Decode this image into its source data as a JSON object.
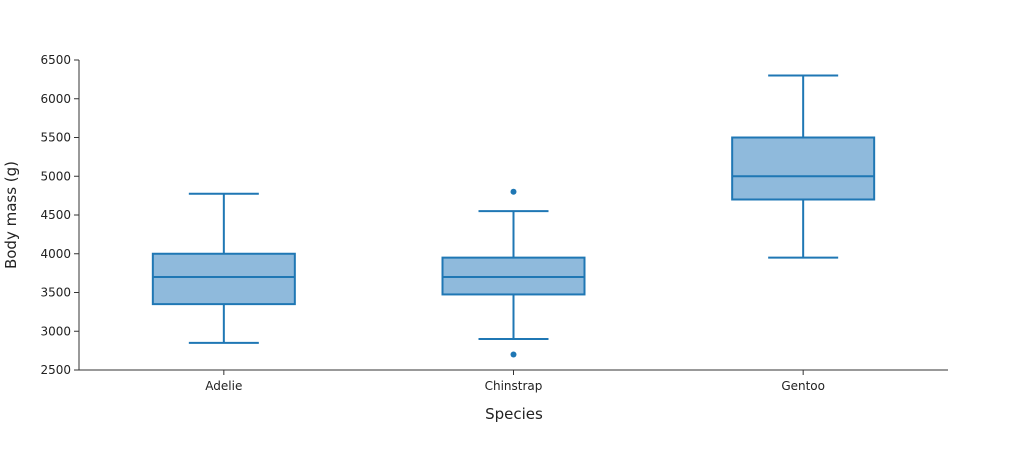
{
  "chart_data": {
    "type": "box",
    "xlabel": "Species",
    "ylabel": "Body mass (g)",
    "ylim": [
      2500,
      6500
    ],
    "yticks": [
      2500,
      3000,
      3500,
      4000,
      4500,
      5000,
      5500,
      6000,
      6500
    ],
    "grid": false,
    "categories": [
      "Adelie",
      "Chinstrap",
      "Gentoo"
    ],
    "boxes": [
      {
        "category": "Adelie",
        "min": 2850,
        "q1": 3350,
        "median": 3700,
        "q3": 4000,
        "max": 4775,
        "outliers": []
      },
      {
        "category": "Chinstrap",
        "min": 2900,
        "q1": 3475,
        "median": 3700,
        "q3": 3950,
        "max": 4550,
        "outliers": [
          4800,
          2700
        ]
      },
      {
        "category": "Gentoo",
        "min": 3950,
        "q1": 4700,
        "median": 5000,
        "q3": 5500,
        "max": 6300,
        "outliers": []
      }
    ],
    "colors": {
      "stroke": "#1f77b4",
      "fill": "#8fbadc",
      "axis": "#333333"
    }
  }
}
